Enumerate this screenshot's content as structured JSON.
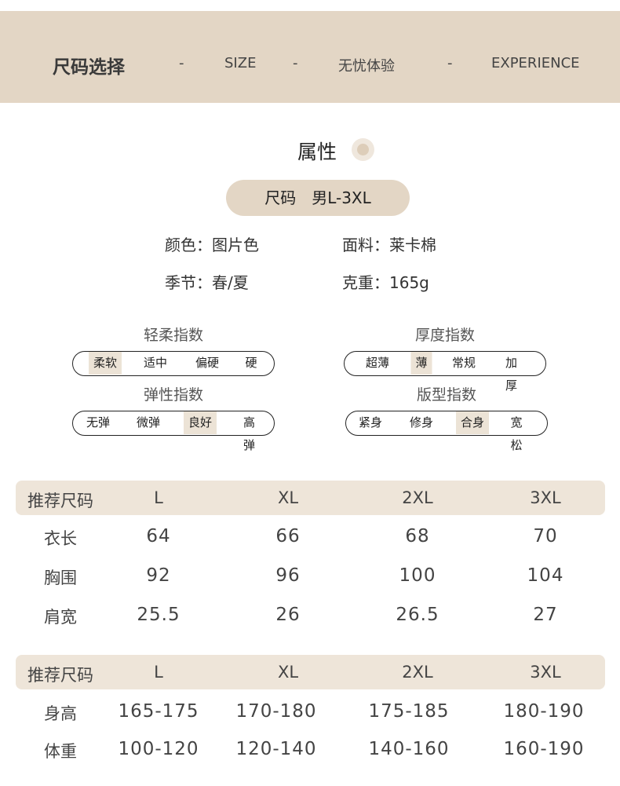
{
  "header": {
    "title": "尺码选择",
    "sep": "-",
    "items": [
      "SIZE",
      "无忧体验",
      "EXPERIENCE"
    ]
  },
  "attributes": {
    "title": "属性",
    "size_pill": "尺码　男L-3XL",
    "color": "颜色：图片色",
    "fabric": "面料：莱卡棉",
    "season": "季节：春/夏",
    "weight": "克重：165g"
  },
  "scales": [
    {
      "label": "轻柔指数",
      "options": [
        "柔软",
        "适中",
        "偏硬",
        "硬"
      ],
      "selected": 0
    },
    {
      "label": "厚度指数",
      "options": [
        "超薄",
        "薄",
        "常规",
        "加厚"
      ],
      "selected": 1
    },
    {
      "label": "弹性指数",
      "options": [
        "无弹",
        "微弹",
        "良好",
        "高弹"
      ],
      "selected": 2
    },
    {
      "label": "版型指数",
      "options": [
        "紧身",
        "修身",
        "合身",
        "宽松"
      ],
      "selected": 2
    }
  ],
  "accent_color": "#e3d6c5",
  "table1": {
    "header": [
      "推荐尺码",
      "L",
      "XL",
      "2XL",
      "3XL"
    ],
    "rows": [
      [
        "衣长",
        "64",
        "66",
        "68",
        "70"
      ],
      [
        "胸围",
        "92",
        "96",
        "100",
        "104"
      ],
      [
        "肩宽",
        "25.5",
        "26",
        "26.5",
        "27"
      ]
    ]
  },
  "table2": {
    "header": [
      "推荐尺码",
      "L",
      "XL",
      "2XL",
      "3XL"
    ],
    "rows": [
      [
        "身高",
        "165-175",
        "170-180",
        "175-185",
        "180-190"
      ],
      [
        "体重",
        "100-120",
        "120-140",
        "140-160",
        "160-190"
      ]
    ]
  }
}
